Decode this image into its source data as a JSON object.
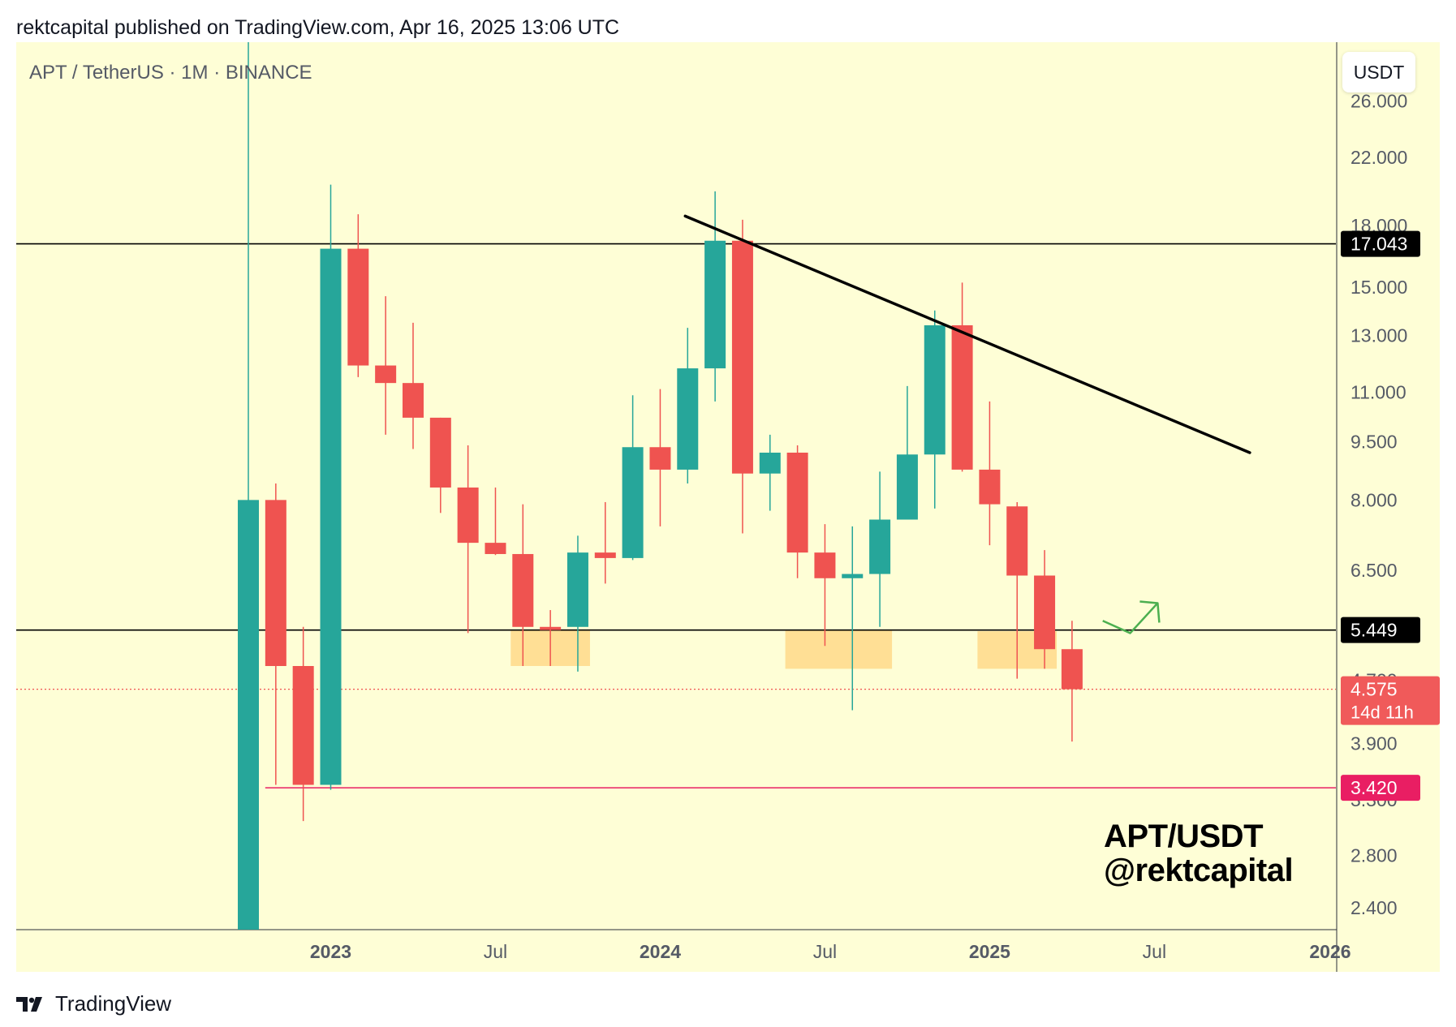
{
  "header": {
    "published": "rektcapital published on TradingView.com, Apr 16, 2025 13:06 UTC"
  },
  "chart_header": {
    "symbol": "APT / TetherUS · 1M · BINANCE",
    "currency_button": "USDT"
  },
  "watermark": {
    "line1": "APT/USDT",
    "line2": "@rektcapital"
  },
  "footer": {
    "brand": "TradingView"
  },
  "colors": {
    "up": "#26a69a",
    "down": "#ef5350",
    "background": "#fefed6",
    "support_box": "#ffd98a",
    "arrow": "#4caf50",
    "support_line": "#e91e63"
  },
  "chart_data": {
    "type": "candlestick",
    "timeframe": "1M",
    "y_scale": "log",
    "ylim": [
      2.25,
      28.0
    ],
    "y_ticks": [
      {
        "value": 26.0,
        "label": "26.000"
      },
      {
        "value": 22.0,
        "label": "22.000"
      },
      {
        "value": 18.0,
        "label": "18.000"
      },
      {
        "value": 15.0,
        "label": "15.000"
      },
      {
        "value": 13.0,
        "label": "13.000"
      },
      {
        "value": 11.0,
        "label": "11.000"
      },
      {
        "value": 9.5,
        "label": "9.500"
      },
      {
        "value": 8.0,
        "label": "8.000"
      },
      {
        "value": 6.5,
        "label": "6.500"
      },
      {
        "value": 4.7,
        "label": "4.700"
      },
      {
        "value": 3.9,
        "label": "3.900"
      },
      {
        "value": 3.3,
        "label": "3.300"
      },
      {
        "value": 2.8,
        "label": "2.800"
      },
      {
        "value": 2.4,
        "label": "2.400"
      }
    ],
    "x_ticks": [
      {
        "date": "2023-01",
        "label": "2023",
        "bold": true
      },
      {
        "date": "2023-07",
        "label": "Jul",
        "bold": false
      },
      {
        "date": "2024-01",
        "label": "2024",
        "bold": true
      },
      {
        "date": "2024-07",
        "label": "Jul",
        "bold": false
      },
      {
        "date": "2025-01",
        "label": "2025",
        "bold": true
      },
      {
        "date": "2025-07",
        "label": "Jul",
        "bold": false
      },
      {
        "date": "2026-01",
        "label": "2026",
        "bold": true
      }
    ],
    "candles": [
      {
        "date": "2022-10",
        "open": 2.25,
        "high": 100.0,
        "low": 2.25,
        "close": 8.0
      },
      {
        "date": "2022-11",
        "open": 8.0,
        "high": 8.4,
        "low": 3.45,
        "close": 4.9
      },
      {
        "date": "2022-12",
        "open": 4.9,
        "high": 5.5,
        "low": 3.1,
        "close": 3.45
      },
      {
        "date": "2023-01",
        "open": 3.45,
        "high": 20.3,
        "low": 3.4,
        "close": 16.8
      },
      {
        "date": "2023-02",
        "open": 16.8,
        "high": 18.6,
        "low": 11.5,
        "close": 11.9
      },
      {
        "date": "2023-03",
        "open": 11.9,
        "high": 14.6,
        "low": 9.7,
        "close": 11.3
      },
      {
        "date": "2023-04",
        "open": 11.3,
        "high": 13.5,
        "low": 9.3,
        "close": 10.2
      },
      {
        "date": "2023-05",
        "open": 10.2,
        "high": 10.2,
        "low": 7.7,
        "close": 8.3
      },
      {
        "date": "2023-06",
        "open": 8.3,
        "high": 9.4,
        "low": 5.4,
        "close": 7.05
      },
      {
        "date": "2023-07",
        "open": 7.05,
        "high": 8.3,
        "low": 6.8,
        "close": 6.82
      },
      {
        "date": "2023-08",
        "open": 6.82,
        "high": 7.9,
        "low": 4.9,
        "close": 5.5
      },
      {
        "date": "2023-09",
        "open": 5.5,
        "high": 5.78,
        "low": 4.9,
        "close": 5.45
      },
      {
        "date": "2023-10",
        "open": 5.5,
        "high": 7.2,
        "low": 4.82,
        "close": 6.85
      },
      {
        "date": "2023-11",
        "open": 6.85,
        "high": 7.95,
        "low": 6.25,
        "close": 6.74
      },
      {
        "date": "2023-12",
        "open": 6.74,
        "high": 10.9,
        "low": 6.7,
        "close": 9.35
      },
      {
        "date": "2024-01",
        "open": 9.35,
        "high": 11.1,
        "low": 7.4,
        "close": 8.75
      },
      {
        "date": "2024-02",
        "open": 8.75,
        "high": 13.3,
        "low": 8.4,
        "close": 11.8
      },
      {
        "date": "2024-03",
        "open": 11.8,
        "high": 19.9,
        "low": 10.7,
        "close": 17.2
      },
      {
        "date": "2024-04",
        "open": 17.2,
        "high": 18.3,
        "low": 7.25,
        "close": 8.65
      },
      {
        "date": "2024-05",
        "open": 8.65,
        "high": 9.7,
        "low": 7.75,
        "close": 9.2
      },
      {
        "date": "2024-06",
        "open": 9.2,
        "high": 9.4,
        "low": 6.35,
        "close": 6.85
      },
      {
        "date": "2024-07",
        "open": 6.85,
        "high": 7.45,
        "low": 5.2,
        "close": 6.35
      },
      {
        "date": "2024-08",
        "open": 6.35,
        "high": 7.4,
        "low": 4.3,
        "close": 6.43
      },
      {
        "date": "2024-09",
        "open": 6.43,
        "high": 8.7,
        "low": 5.5,
        "close": 7.55
      },
      {
        "date": "2024-10",
        "open": 7.55,
        "high": 11.2,
        "low": 7.65,
        "close": 9.15
      },
      {
        "date": "2024-11",
        "open": 9.15,
        "high": 14.0,
        "low": 7.8,
        "close": 13.4
      },
      {
        "date": "2024-12",
        "open": 13.4,
        "high": 15.2,
        "low": 8.7,
        "close": 8.75
      },
      {
        "date": "2025-01",
        "open": 8.75,
        "high": 10.7,
        "low": 7.0,
        "close": 7.9
      },
      {
        "date": "2025-02",
        "open": 7.85,
        "high": 7.95,
        "low": 4.72,
        "close": 6.4
      },
      {
        "date": "2025-03",
        "open": 6.4,
        "high": 6.9,
        "low": 4.86,
        "close": 5.15
      },
      {
        "date": "2025-04",
        "open": 5.15,
        "high": 5.6,
        "low": 3.92,
        "close": 4.575
      }
    ],
    "horizontal_lines": [
      {
        "value": 17.043,
        "label": "17.043",
        "style": "solid",
        "color": "#000000",
        "from_date": "2022-08"
      },
      {
        "value": 5.449,
        "label": "5.449",
        "style": "solid",
        "color": "#000000",
        "from_date": "2022-08"
      },
      {
        "value": 3.42,
        "label": "3.420",
        "style": "solid",
        "color": "#e91e63",
        "from_date": "2022-11"
      },
      {
        "value": 4.575,
        "label": "4.575",
        "sublabel": "14d 11h",
        "style": "dotted",
        "color": "#ef5350",
        "from_date": "2022-08"
      }
    ],
    "trendline": {
      "from": {
        "date": "2024-02",
        "value": 18.5
      },
      "to": {
        "date": "2025-10",
        "value": 9.2
      }
    },
    "support_zones": [
      {
        "from_date": "2023-08",
        "to_date": "2023-10",
        "top": 5.449,
        "bottom": 4.9
      },
      {
        "from_date": "2024-06",
        "to_date": "2024-09",
        "top": 5.449,
        "bottom": 4.86
      },
      {
        "from_date": "2025-01",
        "to_date": "2025-03",
        "top": 5.43,
        "bottom": 4.86
      }
    ],
    "arrow": {
      "from": {
        "date": "2025-05",
        "value": 5.6
      },
      "via": {
        "date": "2025-06",
        "value": 5.4
      },
      "to": {
        "date": "2025-07",
        "value": 5.9
      }
    }
  }
}
